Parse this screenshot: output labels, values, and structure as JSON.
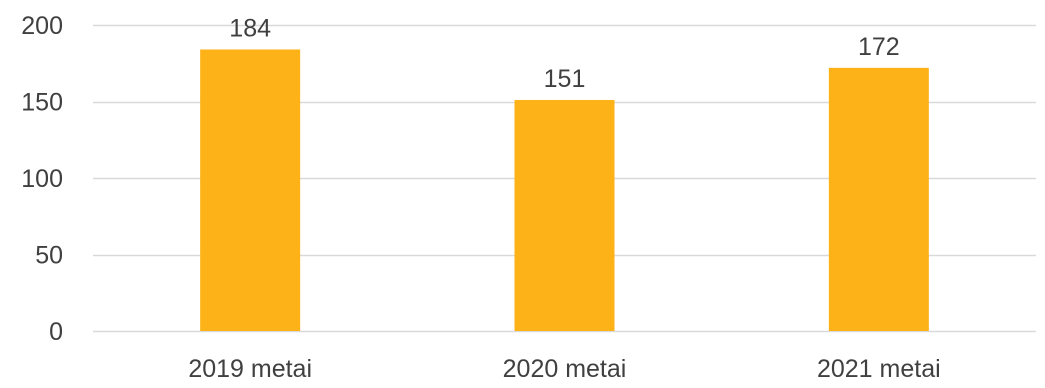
{
  "chart_data": {
    "type": "bar",
    "title": "",
    "xlabel": "",
    "ylabel": "",
    "categories": [
      "2019 metai",
      "2020 metai",
      "2021 metai"
    ],
    "values": [
      184,
      151,
      172
    ],
    "data_labels": [
      "184",
      "151",
      "172"
    ],
    "ylim": [
      0,
      200
    ],
    "yticks": [
      0,
      50,
      100,
      150,
      200
    ],
    "ytick_labels": [
      "0",
      "50",
      "100",
      "150",
      "200"
    ],
    "grid": true,
    "legend": "none",
    "colors": {
      "bar": "#FDB217",
      "grid": "#D9D9D9",
      "text": "#404040"
    }
  }
}
